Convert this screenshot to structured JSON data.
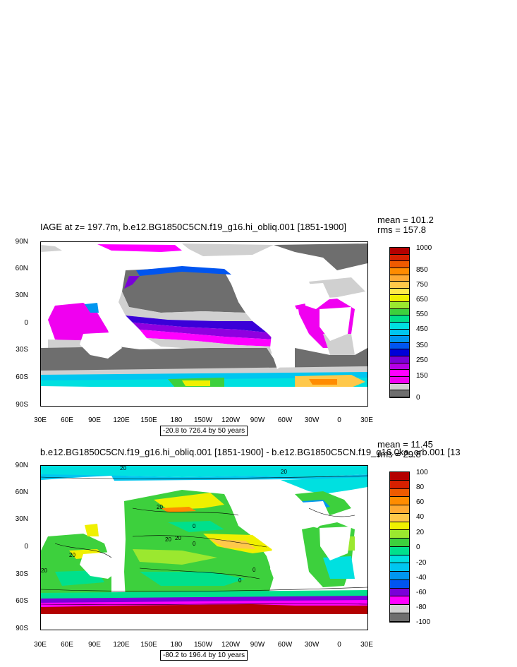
{
  "top": {
    "title": "IAGE at z= 197.7m, b.e12.BG1850C5CN.f19_g16.hi_obliq.001 [1851-1900]",
    "mean": "mean = 101.2",
    "rms": "rms = 157.8",
    "range": "-20.8 to 726.4 by 50 years",
    "colorbar_labels": [
      "1000",
      "850",
      "750",
      "650",
      "550",
      "450",
      "350",
      "250",
      "150",
      "0"
    ],
    "colorbar_colors": [
      "#b40000",
      "#d62000",
      "#ee5a00",
      "#ff8c00",
      "#ffaa33",
      "#ffc84a",
      "#ffe94a",
      "#f0f000",
      "#9be82f",
      "#3dd03d",
      "#00e08c",
      "#00e0e0",
      "#00c6f0",
      "#0096f0",
      "#0055f0",
      "#0000d8",
      "#7a00d8",
      "#b400e6",
      "#ff00ff",
      "#f000f0",
      "#d0d0d0",
      "#6e6e6e"
    ]
  },
  "bottom": {
    "title": "b.e12.BG1850C5CN.f19_g16.hi_obliq.001 [1851-1900] - b.e12.BG1850C5CN.f19_g16.0ka_orb.001 [13",
    "mean": "mean = 11.45",
    "rms": "rms = 29.8",
    "range": "-80.2 to 196.4 by 10 years",
    "colorbar_labels": [
      "100",
      "80",
      "60",
      "40",
      "20",
      "0",
      "-20",
      "-40",
      "-60",
      "-80",
      "-100"
    ],
    "colorbar_colors": [
      "#b40000",
      "#d62000",
      "#ee5a00",
      "#ff8c00",
      "#ffaa33",
      "#ffc84a",
      "#f0f000",
      "#9be82f",
      "#3dd03d",
      "#00e08c",
      "#00e0e0",
      "#00c6f0",
      "#0096f0",
      "#0055f0",
      "#7a00d8",
      "#ff00ff",
      "#d0d0d0",
      "#6e6e6e"
    ]
  },
  "axes": {
    "lat_labels": [
      "90N",
      "60N",
      "30N",
      "0",
      "30S",
      "60S",
      "90S"
    ],
    "lon_labels": [
      "30E",
      "60E",
      "90E",
      "120E",
      "150E",
      "180",
      "150W",
      "120W",
      "90W",
      "60W",
      "30W",
      "0",
      "30E"
    ]
  },
  "contour_labels": [
    "20",
    "20",
    "20",
    "0",
    "20",
    "20",
    "0",
    "20",
    "0",
    "0",
    "20"
  ]
}
